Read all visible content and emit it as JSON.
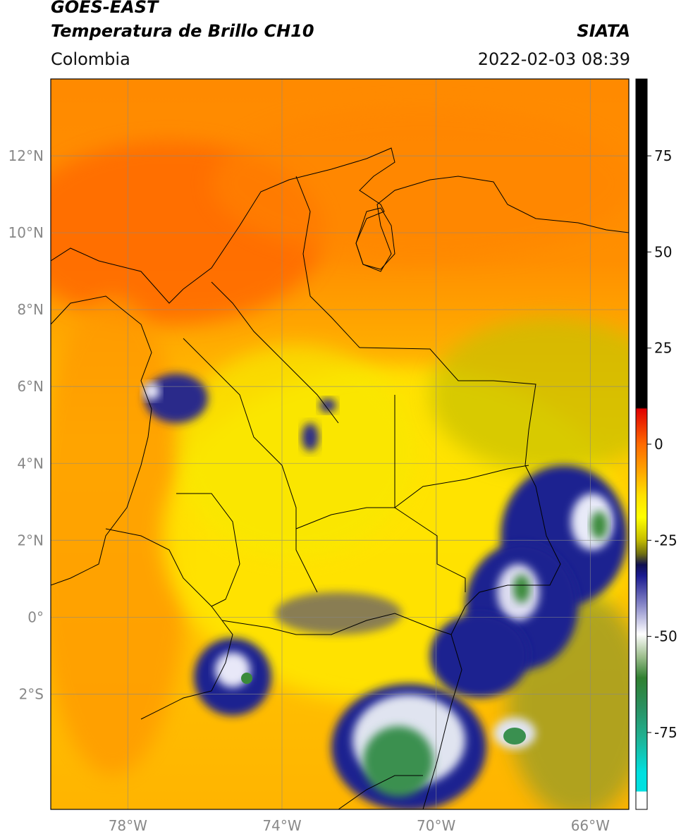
{
  "header": {
    "satellite": "GOES-EAST",
    "product": "Temperatura de Brillo CH10",
    "region": "Colombia",
    "organization": "SIATA",
    "datetime": "2022-02-03 08:39"
  },
  "map": {
    "lon_range": [
      -80,
      -65
    ],
    "lat_range": [
      -5,
      14
    ],
    "x_ticks": [
      {
        "value": -78,
        "label": "78°W"
      },
      {
        "value": -74,
        "label": "74°W"
      },
      {
        "value": -70,
        "label": "70°W"
      },
      {
        "value": -66,
        "label": "66°W"
      }
    ],
    "y_ticks": [
      {
        "value": 12,
        "label": "12°N"
      },
      {
        "value": 10,
        "label": "10°N"
      },
      {
        "value": 8,
        "label": "8°N"
      },
      {
        "value": 6,
        "label": "6°N"
      },
      {
        "value": 4,
        "label": "4°N"
      },
      {
        "value": 2,
        "label": "2°N"
      },
      {
        "value": 0,
        "label": "0°"
      },
      {
        "value": -2,
        "label": "2°S"
      }
    ]
  },
  "colorbar": {
    "range": [
      -95,
      95
    ],
    "ticks": [
      {
        "value": 75,
        "label": "75"
      },
      {
        "value": 50,
        "label": "50"
      },
      {
        "value": 25,
        "label": "25"
      },
      {
        "value": 0,
        "label": "0"
      },
      {
        "value": -25,
        "label": "-25"
      },
      {
        "value": -50,
        "label": "-50"
      },
      {
        "value": -75,
        "label": "-75"
      }
    ]
  }
}
